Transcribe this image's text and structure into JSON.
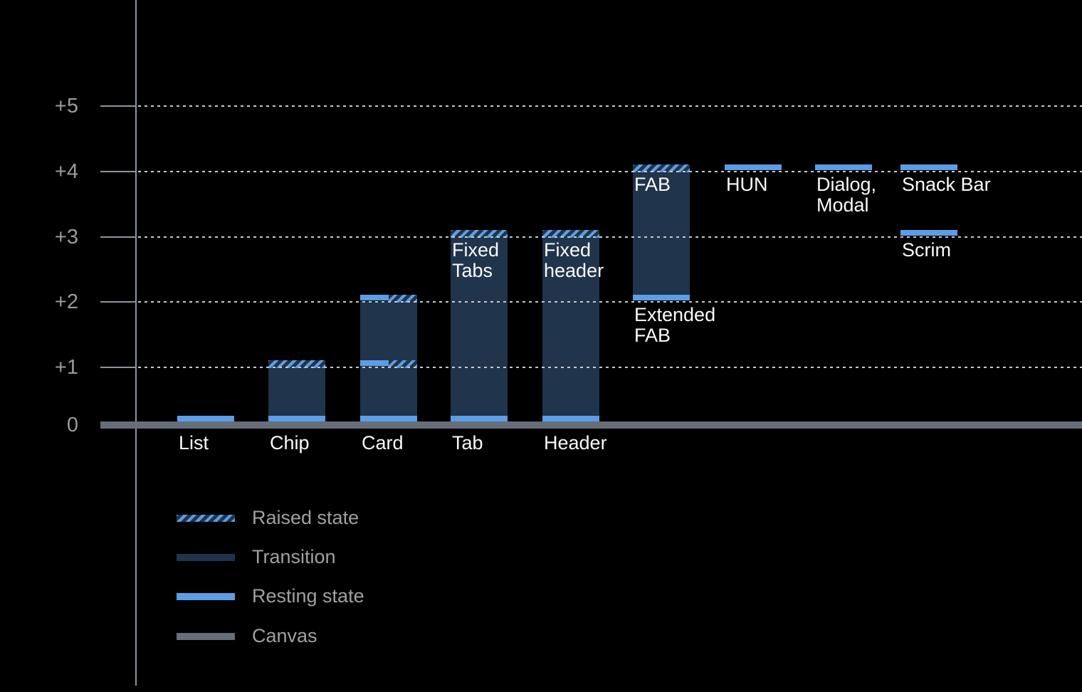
{
  "colors": {
    "background": "#000000",
    "resting_blue": "#5C9DE5",
    "transition_navy": "#20344B",
    "canvas_gray": "#666E79",
    "axis_gray": "#8E959E",
    "grid_dots": "#C6CACE",
    "tick_text": "#999B9E",
    "legend_text": "#9EA0A3",
    "bar_text": "#FAFAFA"
  },
  "legend": {
    "items": [
      {
        "kind": "raised",
        "label": "Raised state"
      },
      {
        "kind": "transition",
        "label": "Transition"
      },
      {
        "kind": "resting",
        "label": "Resting state"
      },
      {
        "kind": "canvas",
        "label": "Canvas"
      }
    ]
  },
  "chart_data": {
    "type": "bar",
    "title": "",
    "xlabel": "",
    "ylabel": "",
    "ylim": [
      0,
      5
    ],
    "grid": "dotted-horizontal",
    "legend_position": "bottom-left",
    "y_axis": {
      "ticks": [
        {
          "value": 5,
          "label": "+5"
        },
        {
          "value": 4,
          "label": "+4"
        },
        {
          "value": 3,
          "label": "+3"
        },
        {
          "value": 2,
          "label": "+2"
        },
        {
          "value": 1,
          "label": "+1"
        },
        {
          "value": 0,
          "label": "0"
        }
      ]
    },
    "components": [
      {
        "name": "list",
        "column": 0,
        "resting_level": 0,
        "raised_level": null,
        "labels": [
          {
            "text": [
              "List"
            ],
            "placement": "axis"
          }
        ],
        "segments": [
          {
            "kind": "resting",
            "level": 0
          }
        ]
      },
      {
        "name": "chip",
        "column": 1,
        "resting_level": 0,
        "raised_level": 1,
        "labels": [
          {
            "text": [
              "Chip"
            ],
            "placement": "axis"
          }
        ],
        "segments": [
          {
            "kind": "transition",
            "from": 0,
            "to": 1
          },
          {
            "kind": "raised",
            "level": 1
          },
          {
            "kind": "resting",
            "level": 0
          }
        ]
      },
      {
        "name": "card",
        "column": 2,
        "resting_level": 0,
        "raised_level": 2,
        "labels": [
          {
            "text": [
              "Card"
            ],
            "placement": "axis"
          }
        ],
        "segments": [
          {
            "kind": "transition",
            "from": 0,
            "to": 2
          },
          {
            "kind": "resting",
            "level": 2,
            "half": "left"
          },
          {
            "kind": "raised",
            "level": 2,
            "half": "right"
          },
          {
            "kind": "resting",
            "level": 1,
            "half": "left"
          },
          {
            "kind": "raised",
            "level": 1,
            "half": "right"
          },
          {
            "kind": "resting",
            "level": 0
          }
        ]
      },
      {
        "name": "tab",
        "column": 3,
        "resting_level": 0,
        "raised_level": 3,
        "labels": [
          {
            "text": [
              "Tab"
            ],
            "placement": "axis"
          },
          {
            "text": [
              "Fixed",
              "Tabs"
            ],
            "placement": "inside-top",
            "at": 3
          }
        ],
        "segments": [
          {
            "kind": "transition",
            "from": 0,
            "to": 3
          },
          {
            "kind": "raised",
            "level": 3
          },
          {
            "kind": "resting",
            "level": 0
          }
        ]
      },
      {
        "name": "header",
        "column": 4,
        "resting_level": 0,
        "raised_level": 3,
        "labels": [
          {
            "text": [
              "Header"
            ],
            "placement": "axis"
          },
          {
            "text": [
              "Fixed",
              "header"
            ],
            "placement": "inside-top",
            "at": 3
          }
        ],
        "segments": [
          {
            "kind": "transition",
            "from": 0,
            "to": 3
          },
          {
            "kind": "raised",
            "level": 3
          },
          {
            "kind": "resting",
            "level": 0
          }
        ]
      },
      {
        "name": "fab",
        "column": 5,
        "resting_level": 2,
        "raised_level": 4,
        "labels": [
          {
            "text": [
              "FAB"
            ],
            "placement": "inside-top",
            "at": 4
          },
          {
            "text": [
              "Extended",
              "FAB"
            ],
            "placement": "below",
            "at": 2
          }
        ],
        "segments": [
          {
            "kind": "transition",
            "from": 2,
            "to": 4
          },
          {
            "kind": "raised",
            "level": 4
          },
          {
            "kind": "resting",
            "level": 2
          }
        ]
      },
      {
        "name": "hun",
        "column": 6,
        "resting_level": 4,
        "raised_level": null,
        "labels": [
          {
            "text": [
              "HUN"
            ],
            "placement": "below",
            "at": 4
          }
        ],
        "segments": [
          {
            "kind": "resting",
            "level": 4
          }
        ]
      },
      {
        "name": "dialog-modal",
        "column": 7,
        "resting_level": 4,
        "raised_level": null,
        "labels": [
          {
            "text": [
              "Dialog,",
              "Modal"
            ],
            "placement": "below",
            "at": 4
          }
        ],
        "segments": [
          {
            "kind": "resting",
            "level": 4
          }
        ]
      },
      {
        "name": "snack-bar",
        "column": 8,
        "resting_level": 4,
        "raised_level": null,
        "labels": [
          {
            "text": [
              "Snack Bar"
            ],
            "placement": "below",
            "at": 4
          }
        ],
        "segments": [
          {
            "kind": "resting",
            "level": 4
          }
        ]
      },
      {
        "name": "scrim",
        "column": 8,
        "resting_level": 3,
        "raised_level": null,
        "labels": [
          {
            "text": [
              "Scrim"
            ],
            "placement": "below",
            "at": 3
          }
        ],
        "segments": [
          {
            "kind": "resting",
            "level": 3
          }
        ]
      }
    ]
  }
}
